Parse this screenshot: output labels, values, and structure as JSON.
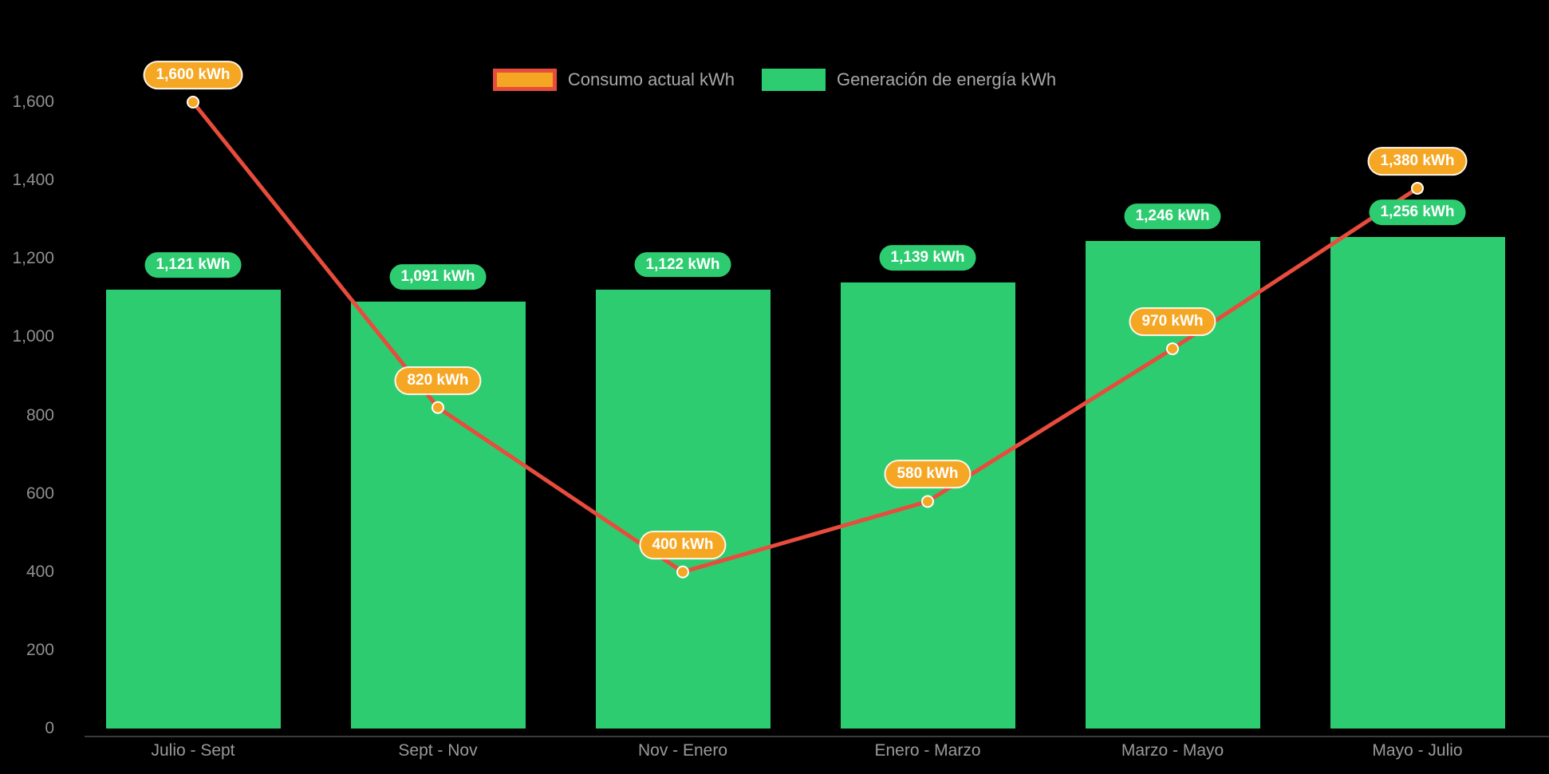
{
  "colors": {
    "background": "#000000",
    "bar_green": "#2ecc71",
    "line_red": "#e74c3c",
    "marker_orange": "#f5a623",
    "badge_green": "#2ecc71",
    "badge_orange": "#f5a623",
    "axis_text": "#8f8f8f",
    "legend_text": "#a8a8a8"
  },
  "legend": {
    "items": [
      {
        "label": "Consumo actual kWh",
        "swatch": "orange-rect-red-border"
      },
      {
        "label": "Generación de energía kWh",
        "swatch": "green-rect"
      }
    ]
  },
  "chart_data": {
    "type": "bar+line",
    "title": "",
    "xlabel": "",
    "ylabel": "",
    "categories": [
      "Julio - Sept",
      "Sept - Nov",
      "Nov - Enero",
      "Enero - Marzo",
      "Marzo - Mayo",
      "Mayo - Julio"
    ],
    "series": [
      {
        "name": "Consumo actual kWh",
        "type": "line",
        "color": "#e74c3c",
        "marker_color": "#f5a623",
        "values": [
          1600,
          820,
          400,
          580,
          970,
          1380
        ],
        "point_labels": [
          "1,600 kWh",
          "820 kWh",
          "400 kWh",
          "580 kWh",
          "970 kWh",
          "1,380 kWh"
        ]
      },
      {
        "name": "Generación de energía kWh",
        "type": "bar",
        "color": "#2ecc71",
        "values": [
          1121,
          1091,
          1122,
          1139,
          1246,
          1256
        ],
        "point_labels": [
          "1,121 kWh",
          "1,091 kWh",
          "1,122 kWh",
          "1,139 kWh",
          "1,246 kWh",
          "1,256 kWh"
        ]
      }
    ],
    "ylim": [
      0,
      1600
    ],
    "yticks": [
      0,
      200,
      400,
      600,
      800,
      1000,
      1200,
      1400,
      1600
    ],
    "ytick_labels": [
      "0",
      "200",
      "400",
      "600",
      "800",
      "1,000",
      "1,200",
      "1,400",
      "1,600"
    ],
    "grid": false,
    "legend_position": "top-center"
  }
}
